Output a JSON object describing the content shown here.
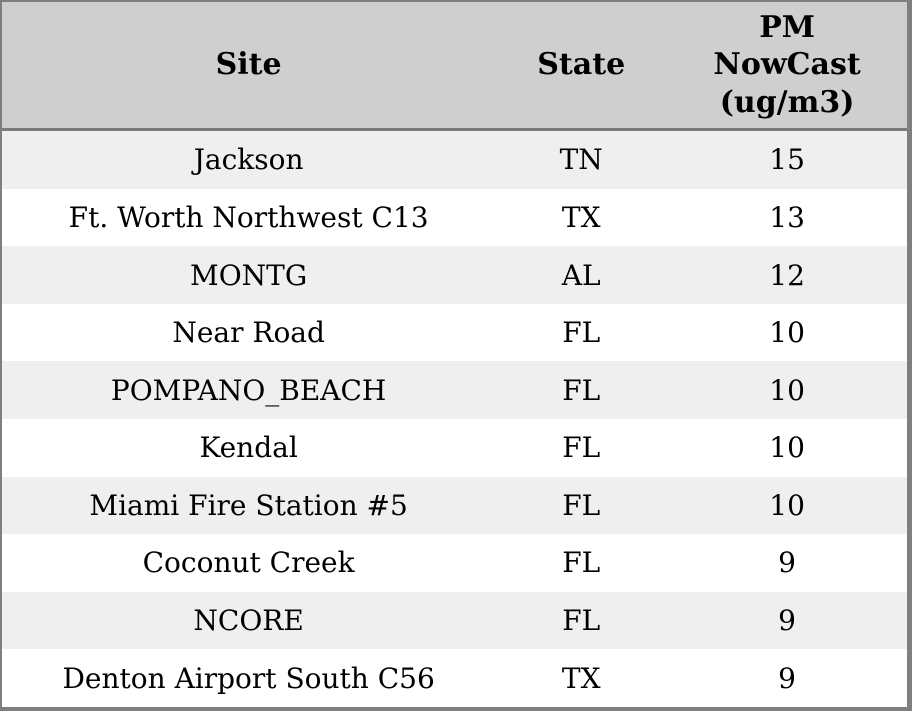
{
  "chart_data": {
    "type": "table",
    "title": "",
    "columns": [
      "Site",
      "State",
      "PM NowCast (ug/m3)"
    ],
    "rows": [
      [
        "Jackson",
        "TN",
        15
      ],
      [
        "Ft. Worth Northwest C13",
        "TX",
        13
      ],
      [
        "MONTG",
        "AL",
        12
      ],
      [
        "Near Road",
        "FL",
        10
      ],
      [
        "POMPANO_BEACH",
        "FL",
        10
      ],
      [
        "Kendal",
        "FL",
        10
      ],
      [
        "Miami Fire Station #5",
        "FL",
        10
      ],
      [
        "Coconut Creek",
        "FL",
        9
      ],
      [
        "NCORE",
        "FL",
        9
      ],
      [
        "Denton Airport South C56",
        "TX",
        9
      ]
    ],
    "layout": {
      "header_position": "top",
      "row_striping": true,
      "grid": false
    }
  },
  "table": {
    "header_display": {
      "site": "Site",
      "state": "State",
      "pm": "PM\nNowCast\n(ug/m3)"
    },
    "colors": {
      "header_bg": "#cfcfcf",
      "row_alt_bg": "#efefef",
      "row_bg": "#ffffff",
      "border": "#7f7f7f",
      "header_separator": "#7a7a7a",
      "text": "#000000"
    }
  }
}
